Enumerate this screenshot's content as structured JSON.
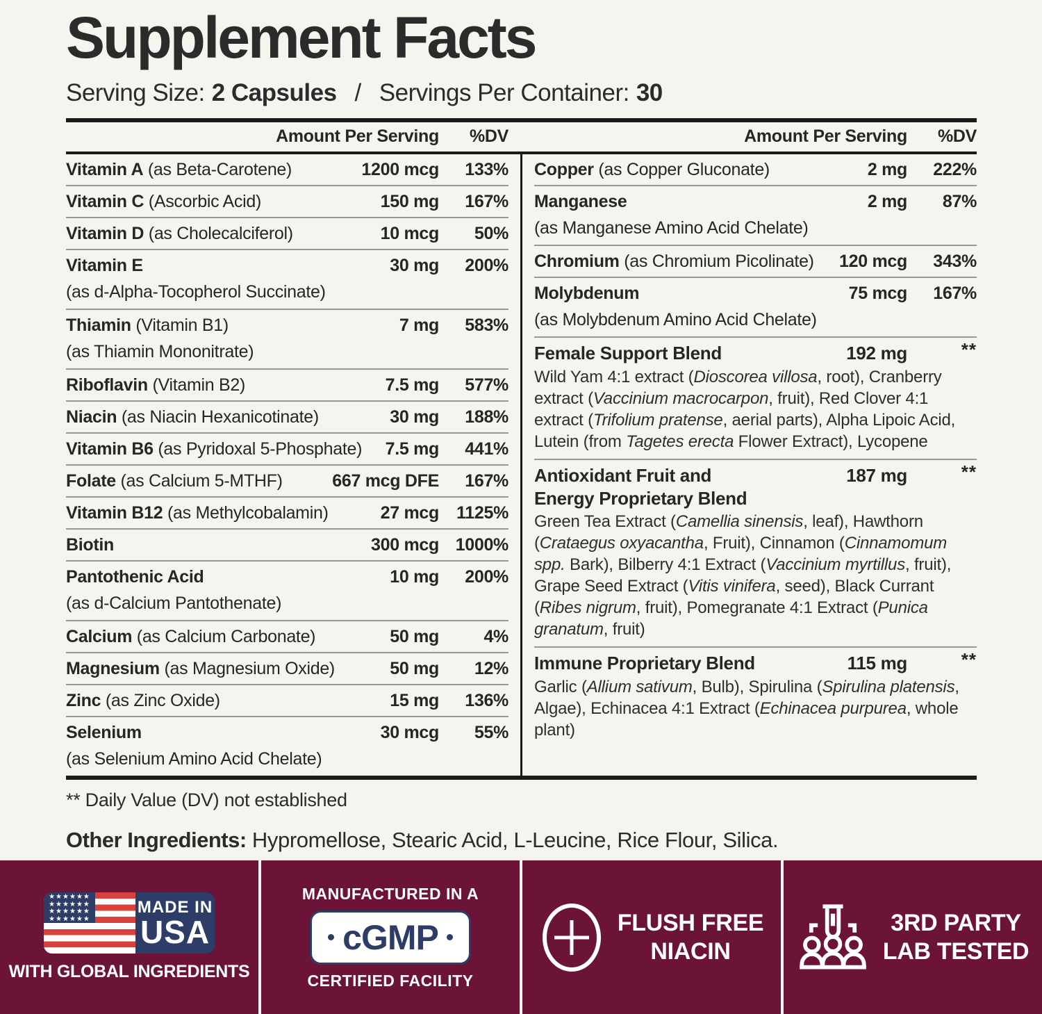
{
  "header": {
    "title": "Supplement Facts",
    "serving_size_label": "Serving Size:",
    "serving_size_value": "2 Capsules",
    "separator": "/",
    "servings_label": "Servings Per Container:",
    "servings_value": "30"
  },
  "table": {
    "amount_header": "Amount Per Serving",
    "dv_header": "%DV",
    "left_rows": [
      {
        "name": "Vitamin A",
        "desc": "(as Beta-Carotene)",
        "amount": "1200 mcg",
        "dv": "133%"
      },
      {
        "name": "Vitamin C",
        "desc": "(Ascorbic Acid)",
        "amount": "150 mg",
        "dv": "167%"
      },
      {
        "name": "Vitamin D",
        "desc": "(as Cholecalciferol)",
        "amount": "10 mcg",
        "dv": "50%"
      },
      {
        "name": "Vitamin E",
        "desc": "",
        "amount": "30 mg",
        "dv": "200%",
        "sub": "(as d-Alpha-Tocopherol Succinate)"
      },
      {
        "name": "Thiamin",
        "desc": "(Vitamin B1)",
        "amount": "7 mg",
        "dv": "583%",
        "sub": "(as Thiamin Mononitrate)"
      },
      {
        "name": "Riboflavin",
        "desc": "(Vitamin B2)",
        "amount": "7.5 mg",
        "dv": "577%"
      },
      {
        "name": "Niacin",
        "desc": "(as Niacin Hexanicotinate)",
        "amount": "30 mg",
        "dv": "188%"
      },
      {
        "name": "Vitamin B6",
        "desc": "(as Pyridoxal 5-Phosphate)",
        "amount": "7.5 mg",
        "dv": "441%"
      },
      {
        "name": "Folate",
        "desc": "(as Calcium 5-MTHF)",
        "amount": "667 mcg DFE",
        "dv": "167%"
      },
      {
        "name": "Vitamin B12",
        "desc": "(as Methylcobalamin)",
        "amount": "27 mcg",
        "dv": "1125%"
      },
      {
        "name": "Biotin",
        "desc": "",
        "amount": "300 mcg",
        "dv": "1000%"
      },
      {
        "name": "Pantothenic Acid",
        "desc": "",
        "amount": "10 mg",
        "dv": "200%",
        "sub": "(as d-Calcium Pantothenate)"
      },
      {
        "name": "Calcium",
        "desc": "(as Calcium Carbonate)",
        "amount": "50 mg",
        "dv": "4%"
      },
      {
        "name": "Magnesium",
        "desc": "(as Magnesium Oxide)",
        "amount": "50 mg",
        "dv": "12%"
      },
      {
        "name": "Zinc",
        "desc": "(as Zinc Oxide)",
        "amount": "15 mg",
        "dv": "136%"
      },
      {
        "name": "Selenium",
        "desc": "",
        "amount": "30 mcg",
        "dv": "55%",
        "sub": "(as Selenium Amino Acid Chelate)"
      }
    ],
    "right_rows": [
      {
        "name": "Copper",
        "desc": "(as Copper Gluconate)",
        "amount": "2 mg",
        "dv": "222%"
      },
      {
        "name": "Manganese",
        "desc": "",
        "amount": "2 mg",
        "dv": "87%",
        "sub": "(as Manganese Amino Acid Chelate)"
      },
      {
        "name": "Chromium",
        "desc": "(as Chromium Picolinate)",
        "amount": "120 mcg",
        "dv": "343%"
      },
      {
        "name": "Molybdenum",
        "desc": "",
        "amount": "75 mcg",
        "dv": "167%",
        "sub": "(as Molybdenum Amino Acid Chelate)"
      },
      {
        "type": "blend",
        "name": "Female Support Blend",
        "amount": "192 mg",
        "dv": "**",
        "ingredients": [
          {
            "t": "Wild Yam 4:1 extract ("
          },
          {
            "t": "Dioscorea villosa",
            "i": true
          },
          {
            "t": ", root), Cranberry extract ("
          },
          {
            "t": "Vaccinium macrocarpon",
            "i": true
          },
          {
            "t": ", fruit), Red Clover 4:1 extract ("
          },
          {
            "t": "Trifolium pratense",
            "i": true
          },
          {
            "t": ", aerial parts), Alpha Lipoic Acid, Lutein (from "
          },
          {
            "t": "Tagetes erecta",
            "i": true
          },
          {
            "t": " Flower Extract), Lycopene"
          }
        ]
      },
      {
        "type": "blend",
        "name": "Antioxidant Fruit and",
        "name2": "Energy Proprietary Blend",
        "amount": "187 mg",
        "dv": "**",
        "ingredients": [
          {
            "t": "Green Tea Extract ("
          },
          {
            "t": "Camellia sinensis",
            "i": true
          },
          {
            "t": ", leaf), Hawthorn ("
          },
          {
            "t": "Crataegus oxyacantha",
            "i": true
          },
          {
            "t": ", Fruit), Cinnamon ("
          },
          {
            "t": "Cinnamomum spp.",
            "i": true
          },
          {
            "t": " Bark), Bilberry 4:1 Extract ("
          },
          {
            "t": "Vaccinium myrtillus",
            "i": true
          },
          {
            "t": ", fruit), Grape Seed Extract ("
          },
          {
            "t": "Vitis vinifera",
            "i": true
          },
          {
            "t": ", seed), Black Currant ("
          },
          {
            "t": "Ribes nigrum",
            "i": true
          },
          {
            "t": ", fruit), Pomegranate 4:1 Extract ("
          },
          {
            "t": "Punica granatum",
            "i": true
          },
          {
            "t": ", fruit)"
          }
        ]
      },
      {
        "type": "blend",
        "name": "Immune Proprietary Blend",
        "amount": "115 mg",
        "dv": "**",
        "ingredients": [
          {
            "t": "Garlic ("
          },
          {
            "t": "Allium sativum",
            "i": true
          },
          {
            "t": ", Bulb), Spirulina ("
          },
          {
            "t": "Spirulina platensis",
            "i": true
          },
          {
            "t": ", Algae), Echinacea 4:1 Extract ("
          },
          {
            "t": "Echinacea purpurea",
            "i": true
          },
          {
            "t": ", whole plant)"
          }
        ]
      }
    ]
  },
  "footnotes": {
    "dv_note": "** Daily Value (DV) not established",
    "other_ingredients_label": "Other Ingredients:",
    "other_ingredients_value": "Hypromellose, Stearic Acid, L-Leucine, Rice Flour, Silica."
  },
  "badges": {
    "made_in_usa": {
      "icon": "us-flag-icon",
      "line1": "MADE IN",
      "line2": "USA",
      "subtext": "WITH GLOBAL INGREDIENTS"
    },
    "cgmp": {
      "top": "MANUFACTURED IN A",
      "box": "cGMP",
      "bottom": "CERTIFIED FACILITY"
    },
    "flush_free": {
      "icon": "plus-circle-icon",
      "line1": "FLUSH FREE",
      "line2": "NIACIN"
    },
    "lab_tested": {
      "icon": "lab-test-people-icon",
      "line1": "3RD PARTY",
      "line2": "LAB TESTED"
    }
  },
  "colors": {
    "background": "#f6f4ee",
    "text": "#262626",
    "maroon": "#6c1438",
    "navy": "#2e3c68",
    "flag_red": "#d8413c",
    "rule_thin": "#9b988f",
    "rule_thick": "#1b1b1b"
  }
}
